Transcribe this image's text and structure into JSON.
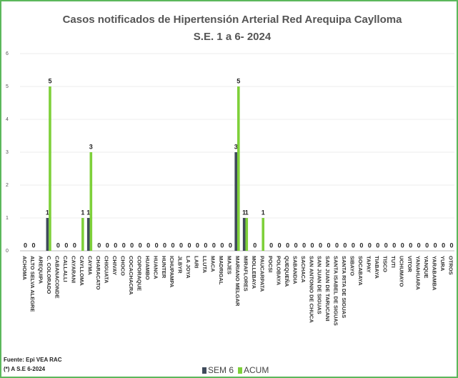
{
  "chart_data": {
    "type": "bar",
    "title": "Casos notificados de Hipertensión Arterial Red Arequipa  Caylloma",
    "subtitle": "S.E. 1 a 6- 2024",
    "source": "Fuente: Epi VEA RAC",
    "note": "(*) A S.E 6-2024",
    "categories": [
      "ACHOMA",
      "ALTO SELVA ALEGRE",
      "AREQUIPA",
      "C. COLORADO",
      "CABANACONDE",
      "CALLALLI",
      "CAYARANI",
      "CAYLLOMA",
      "CAYMA",
      "CHARACATO",
      "CHIGUATA",
      "CHIVAY",
      "CHOCO",
      "COCACHACRA",
      "COPORAQUE",
      "HUAMBO",
      "HUANCA",
      "HUNTER",
      "ICHUPAMPA",
      "JLBYR",
      "LA JOYA",
      "LARI",
      "LLUTA",
      "MACA",
      "MADRIGAL",
      "MAJES",
      "MARIANO MELGAR",
      "MIRAFLORES",
      "MOLLEBAYA",
      "PAUCARPATA",
      "POCSI",
      "POLOBAYA",
      "QUEQUEÑA",
      "SABANDIA",
      "SACHACA",
      "SAN ANTONIO DE CHUCA",
      "SAN JUAN DE SIGUAS",
      "SAN JUAN DE TARUCANI",
      "SANTA ISABEL DE SIGUAS",
      "SANTA RITA DE SIGUAS",
      "SIBAYO",
      "SOCABAYA",
      "TAPAY",
      "TIABAYA",
      "TISCO",
      "TUTI",
      "UCHUMAYO",
      "VITOR",
      "YANAHUARA",
      "YANQUE",
      "YARABAMBA",
      "YURA",
      "OTROS"
    ],
    "series": [
      {
        "name": "SEM 6",
        "color": "#3f4b5b",
        "values": [
          0,
          0,
          null,
          1,
          0,
          0,
          0,
          0,
          1,
          0,
          0,
          0,
          0,
          0,
          0,
          0,
          0,
          0,
          0,
          0,
          0,
          0,
          0,
          0,
          0,
          0,
          3,
          1,
          0,
          0,
          0,
          0,
          0,
          0,
          0,
          0,
          0,
          0,
          0,
          0,
          0,
          0,
          0,
          0,
          0,
          0,
          0,
          0,
          0,
          0,
          0,
          0,
          0
        ],
        "value_labels": [
          null,
          null,
          null,
          "1",
          null,
          null,
          null,
          null,
          "1",
          null,
          null,
          null,
          null,
          null,
          null,
          null,
          null,
          null,
          null,
          null,
          null,
          null,
          null,
          null,
          null,
          null,
          "3",
          "1",
          null,
          null,
          null,
          null,
          null,
          null,
          null,
          null,
          null,
          null,
          null,
          null,
          null,
          null,
          null,
          null,
          null,
          null,
          null,
          null,
          null,
          null,
          null,
          null,
          null
        ]
      },
      {
        "name": "ACUM",
        "color": "#7ed03a",
        "values": [
          0,
          0,
          null,
          5,
          0,
          0,
          0,
          1,
          3,
          0,
          0,
          0,
          0,
          0,
          0,
          0,
          0,
          0,
          0,
          0,
          0,
          0,
          0,
          0,
          0,
          0,
          5,
          1,
          0,
          1,
          0,
          0,
          0,
          0,
          0,
          0,
          0,
          0,
          0,
          0,
          0,
          0,
          0,
          0,
          0,
          0,
          0,
          0,
          0,
          0,
          0,
          0,
          0
        ]
      }
    ],
    "ylim": [
      0,
      6
    ],
    "yticks": [
      0,
      1,
      2,
      3,
      4,
      5,
      6
    ],
    "grid": true,
    "legend": "bottom"
  }
}
